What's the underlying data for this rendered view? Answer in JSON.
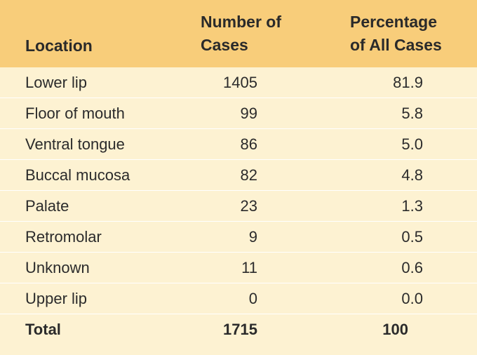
{
  "headers": {
    "location": "Location",
    "cases_line1": "Number of",
    "cases_line2": "Cases",
    "pct_line1": "Percentage",
    "pct_line2": "of All Cases"
  },
  "rows": [
    {
      "location": "Lower lip",
      "cases": "1405",
      "pct": "81.9"
    },
    {
      "location": "Floor of mouth",
      "cases": "99",
      "pct": "5.8"
    },
    {
      "location": "Ventral tongue",
      "cases": "86",
      "pct": "5.0"
    },
    {
      "location": "Buccal mucosa",
      "cases": "82",
      "pct": "4.8"
    },
    {
      "location": "Palate",
      "cases": "23",
      "pct": "1.3"
    },
    {
      "location": "Retromolar",
      "cases": "9",
      "pct": "0.5"
    },
    {
      "location": "Unknown",
      "cases": "11",
      "pct": "0.6"
    },
    {
      "location": "Upper lip",
      "cases": "0",
      "pct": "0.0"
    }
  ],
  "total": {
    "location": "Total",
    "cases": "1715",
    "pct": "100"
  },
  "colors": {
    "header_bg": "#f8cd7a",
    "body_bg": "#fdf2d2",
    "divider": "#ffffff"
  }
}
